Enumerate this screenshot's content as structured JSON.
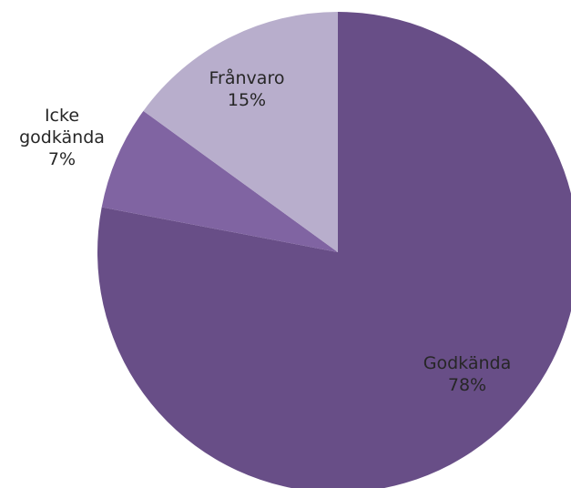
{
  "chart_data": {
    "type": "pie",
    "title": "",
    "start_angle_deg": 0,
    "direction": "clockwise",
    "slices": [
      {
        "name": "Godkända",
        "lines": [
          "Godkända",
          "78%"
        ],
        "value": 78,
        "color": "#684e87"
      },
      {
        "name": "Icke godkända",
        "lines": [
          "Icke",
          "godkända",
          "7%"
        ],
        "value": 7,
        "color": "#8064a2"
      },
      {
        "name": "Frånvaro",
        "lines": [
          "Frånvaro",
          "15%"
        ],
        "value": 15,
        "color": "#b8aecc"
      }
    ]
  }
}
